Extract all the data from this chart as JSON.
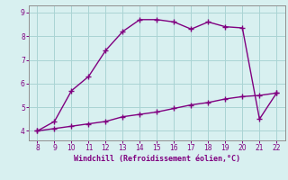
{
  "upper_x": [
    8,
    9,
    10,
    11,
    12,
    13,
    14,
    15,
    16,
    17,
    18,
    19,
    20,
    21,
    22
  ],
  "upper_y": [
    4.0,
    4.4,
    5.7,
    6.3,
    7.4,
    8.2,
    8.7,
    8.7,
    8.6,
    8.3,
    8.6,
    8.4,
    8.35,
    4.5,
    5.6
  ],
  "lower_x": [
    8,
    9,
    10,
    11,
    12,
    13,
    14,
    15,
    16,
    17,
    18,
    19,
    20,
    21,
    22
  ],
  "lower_y": [
    4.0,
    4.1,
    4.2,
    4.3,
    4.4,
    4.6,
    4.7,
    4.8,
    4.95,
    5.1,
    5.2,
    5.35,
    5.45,
    5.5,
    5.6
  ],
  "line_color": "#800080",
  "bg_color": "#d8f0f0",
  "grid_color": "#aad4d4",
  "xlabel": "Windchill (Refroidissement éolien,°C)",
  "xlabel_color": "#800080",
  "xlim": [
    7.5,
    22.5
  ],
  "ylim": [
    3.6,
    9.3
  ],
  "xticks": [
    8,
    9,
    10,
    11,
    12,
    13,
    14,
    15,
    16,
    17,
    18,
    19,
    20,
    21,
    22
  ],
  "yticks": [
    4,
    5,
    6,
    7,
    8,
    9
  ],
  "marker": "+",
  "markersize": 4,
  "linewidth": 1.0
}
